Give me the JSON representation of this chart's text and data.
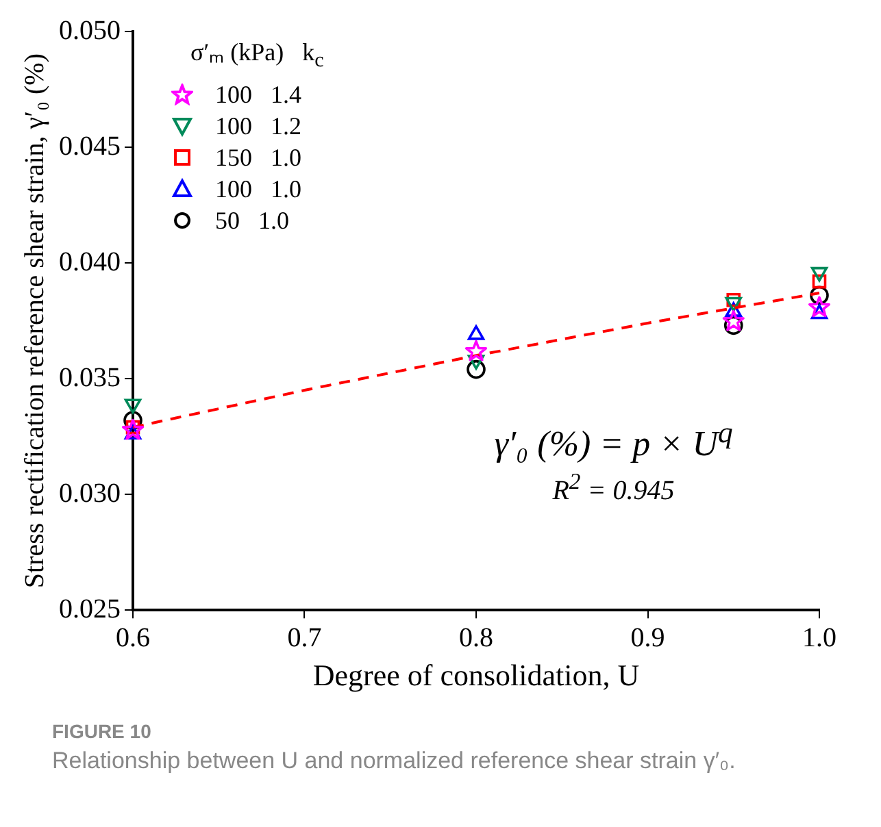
{
  "chart_data": {
    "type": "scatter",
    "xlabel": "Degree of consolidation, U",
    "ylabel": "Stress rectification reference shear strain, γ′₀ (%)",
    "legend_title": "σ′ₘ (kPa)   k$_{c}$",
    "legend": "top left",
    "x": [
      0.6,
      0.8,
      0.95,
      1.0
    ],
    "xlim": [
      0.6,
      1.0
    ],
    "xticks": [
      0.6,
      0.7,
      0.8,
      0.9,
      {
        "value": 1.0,
        "label": "1.0"
      }
    ],
    "ylim": [
      0.025,
      0.05
    ],
    "yticks": [
      0.025,
      {
        "value": 0.03,
        "label": "0.030"
      },
      0.035,
      {
        "value": 0.04,
        "label": "0.040"
      },
      0.045,
      {
        "value": 0.05,
        "label": "0.050"
      }
    ],
    "grid": false,
    "series": [
      {
        "name": "100   1.4",
        "marker": "star",
        "color": "#ff00ff",
        "values": [
          0.0328,
          0.0362,
          0.0375,
          0.0381
        ]
      },
      {
        "name": "100   1.2",
        "marker": "triangle_down",
        "color": "#008a5a",
        "values": [
          0.0339,
          0.0358,
          0.0383,
          0.0396
        ]
      },
      {
        "name": "150   1.0",
        "marker": "square",
        "color": "#ff0000",
        "values": [
          0.0329,
          null,
          0.0384,
          0.0392
        ]
      },
      {
        "name": "100   1.0",
        "marker": "triangle",
        "color": "#0000ff",
        "values": [
          0.0326,
          0.0369,
          0.0379,
          0.0378
        ]
      },
      {
        "name": "50   1.0",
        "marker": "circle",
        "color": "#000000",
        "values": [
          0.0332,
          0.0354,
          0.0373,
          0.0386
        ]
      },
      {
        "type": "line",
        "marker": "none",
        "line_style": "dashed",
        "color": "#ff0000",
        "x": [
          0.6,
          0.7,
          0.8,
          0.9,
          1.0
        ],
        "values": [
          0.0329,
          0.0345,
          0.036,
          0.0374,
          0.0387
        ]
      }
    ],
    "annotations": [
      "γ′₀ (%) = p × U$^{q}$",
      "R$^{2}$ = 0.945",
      "FIGURE 10",
      "Relationship between U and normalized reference shear strain γ′₀."
    ]
  }
}
